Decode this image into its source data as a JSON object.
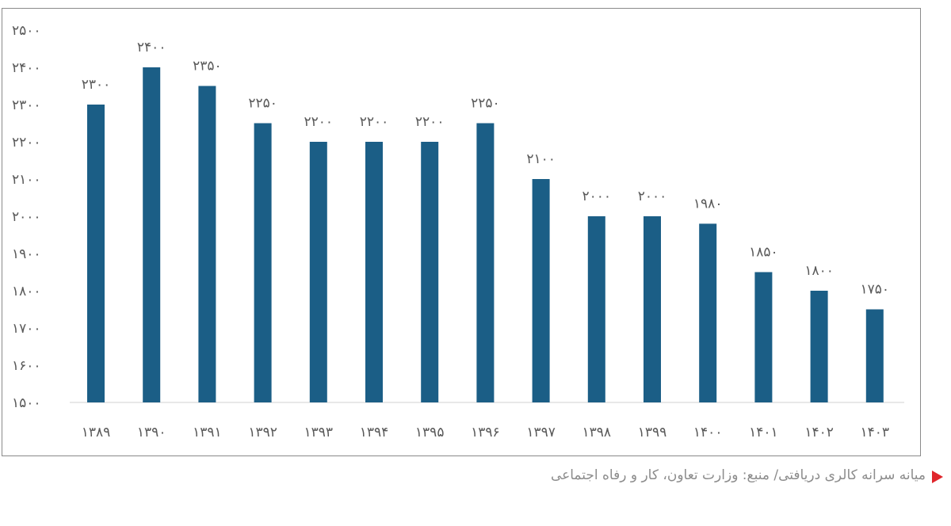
{
  "chart_data": {
    "type": "bar",
    "title": "",
    "xlabel": "",
    "ylabel": "",
    "ylim": [
      1500,
      2500
    ],
    "yticks": [
      "۱۵۰۰",
      "۱۶۰۰",
      "۱۷۰۰",
      "۱۸۰۰",
      "۱۹۰۰",
      "۲۰۰۰",
      "۲۱۰۰",
      "۲۲۰۰",
      "۲۳۰۰",
      "۲۴۰۰",
      "۲۵۰۰"
    ],
    "ytick_values": [
      1500,
      1600,
      1700,
      1800,
      1900,
      2000,
      2100,
      2200,
      2300,
      2400,
      2500
    ],
    "categories": [
      "۱۳۸۹",
      "۱۳۹۰",
      "۱۳۹۱",
      "۱۳۹۲",
      "۱۳۹۳",
      "۱۳۹۴",
      "۱۳۹۵",
      "۱۳۹۶",
      "۱۳۹۷",
      "۱۳۹۸",
      "۱۳۹۹",
      "۱۴۰۰",
      "۱۴۰۱",
      "۱۴۰۲",
      "۱۴۰۳"
    ],
    "values": [
      2300,
      2400,
      2350,
      2250,
      2200,
      2200,
      2200,
      2250,
      2100,
      2000,
      2000,
      1980,
      1850,
      1800,
      1750
    ],
    "data_labels": [
      "۲۳۰۰",
      "۲۴۰۰",
      "۲۳۵۰",
      "۲۲۵۰",
      "۲۲۰۰",
      "۲۲۰۰",
      "۲۲۰۰",
      "۲۲۵۰",
      "۲۱۰۰",
      "۲۰۰۰",
      "۲۰۰۰",
      "۱۹۸۰",
      "۱۸۵۰",
      "۱۸۰۰",
      "۱۷۵۰"
    ],
    "grid": false,
    "legend": "none",
    "bar_color": "#1b5e86"
  },
  "caption": {
    "text": "میانه سرانه کالری دریافتی/ منبع: وزارت تعاون، کار و رفاه اجتماعی",
    "marker_color": "#e0262c"
  }
}
